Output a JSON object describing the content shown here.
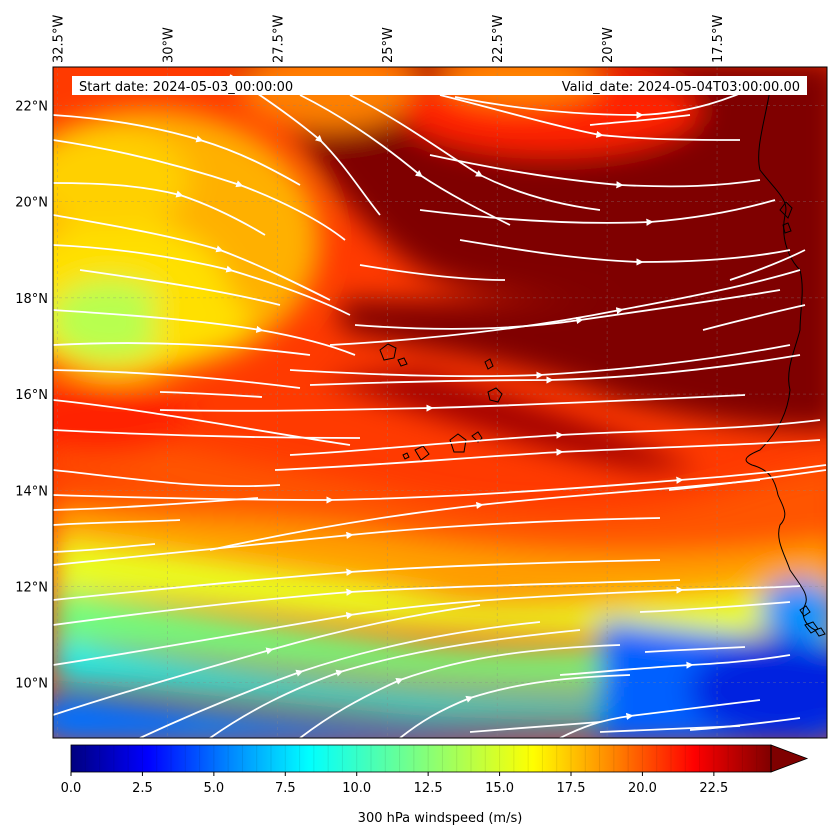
{
  "map": {
    "start_date_label": "Start date: 2024-05-03_00:00:00",
    "valid_date_label": "Valid_date: 2024-05-04T03:00:00.00",
    "lon_labels": [
      "32.5°W",
      "30°W",
      "27.5°W",
      "25°W",
      "22.5°W",
      "20°W",
      "17.5°W"
    ],
    "lat_labels": [
      "22°N",
      "20°N",
      "18°N",
      "16°N",
      "14°N",
      "12°N",
      "10°N"
    ],
    "lon_values": [
      -32.5,
      -30,
      -27.5,
      -25,
      -22.5,
      -20,
      -17.5
    ],
    "lat_values": [
      22,
      20,
      18,
      16,
      14,
      12,
      10
    ],
    "extent": {
      "lon_min": -32.6,
      "lon_max": -15.0,
      "lat_min": 8.85,
      "lat_max": 22.8
    },
    "field": "300 hPa windspeed",
    "streamline_color": "#ffffff",
    "coastline_color": "#000000"
  },
  "colorbar": {
    "label": "300 hPa windspeed (m/s)",
    "tick_labels": [
      "0.0",
      "2.5",
      "5.0",
      "7.5",
      "10.0",
      "12.5",
      "15.0",
      "17.5",
      "20.0",
      "22.5"
    ],
    "tick_values": [
      0,
      2.5,
      5,
      7.5,
      10,
      12.5,
      15,
      17.5,
      20,
      22.5
    ],
    "vmin": 0,
    "vmax": 24.5,
    "extend": "max",
    "colors": [
      "#00007f",
      "#0000ff",
      "#007fff",
      "#00ffff",
      "#7fff7f",
      "#ffff00",
      "#ff7f00",
      "#ff0000",
      "#7f0000"
    ]
  }
}
